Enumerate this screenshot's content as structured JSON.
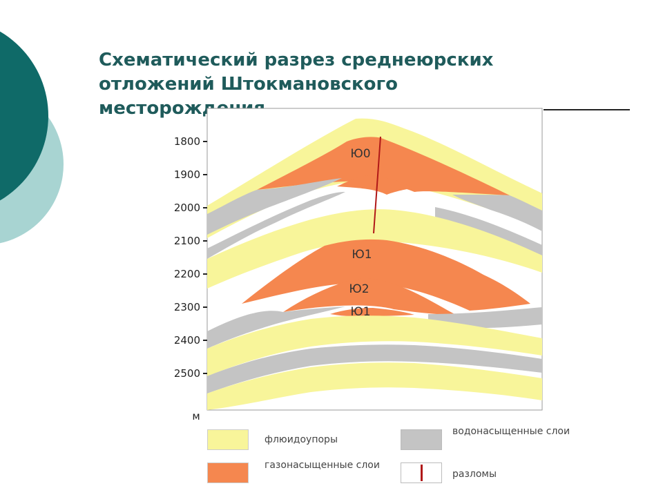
{
  "slide": {
    "title": "Схематический разрез среднеюрских отложений Штокмановского месторождения"
  },
  "section": {
    "depth_axis": {
      "ticks": [
        "1800",
        "1900",
        "2000",
        "2100",
        "2200",
        "2300",
        "2400",
        "2500"
      ],
      "unit": "м"
    },
    "layer_labels": [
      "Ю0",
      "Ю1",
      "Ю2",
      "Ю1"
    ]
  },
  "legend": {
    "items": [
      {
        "label": "флюидоупоры",
        "color": "#f8f59a"
      },
      {
        "label": "газонасыщенные слои",
        "color": "#f5874f"
      },
      {
        "label": "водонасыщенные слои",
        "color": "#c4c4c4"
      },
      {
        "label": "разломы",
        "color": "#b01818"
      }
    ]
  },
  "colors": {
    "teal_dark": "#0f6a68",
    "teal_light": "#a8d4d2",
    "title": "#1f5b5b",
    "seal": "#f8f59a",
    "gas": "#f5874f",
    "water": "#c4c4c4",
    "fault": "#b01818"
  }
}
